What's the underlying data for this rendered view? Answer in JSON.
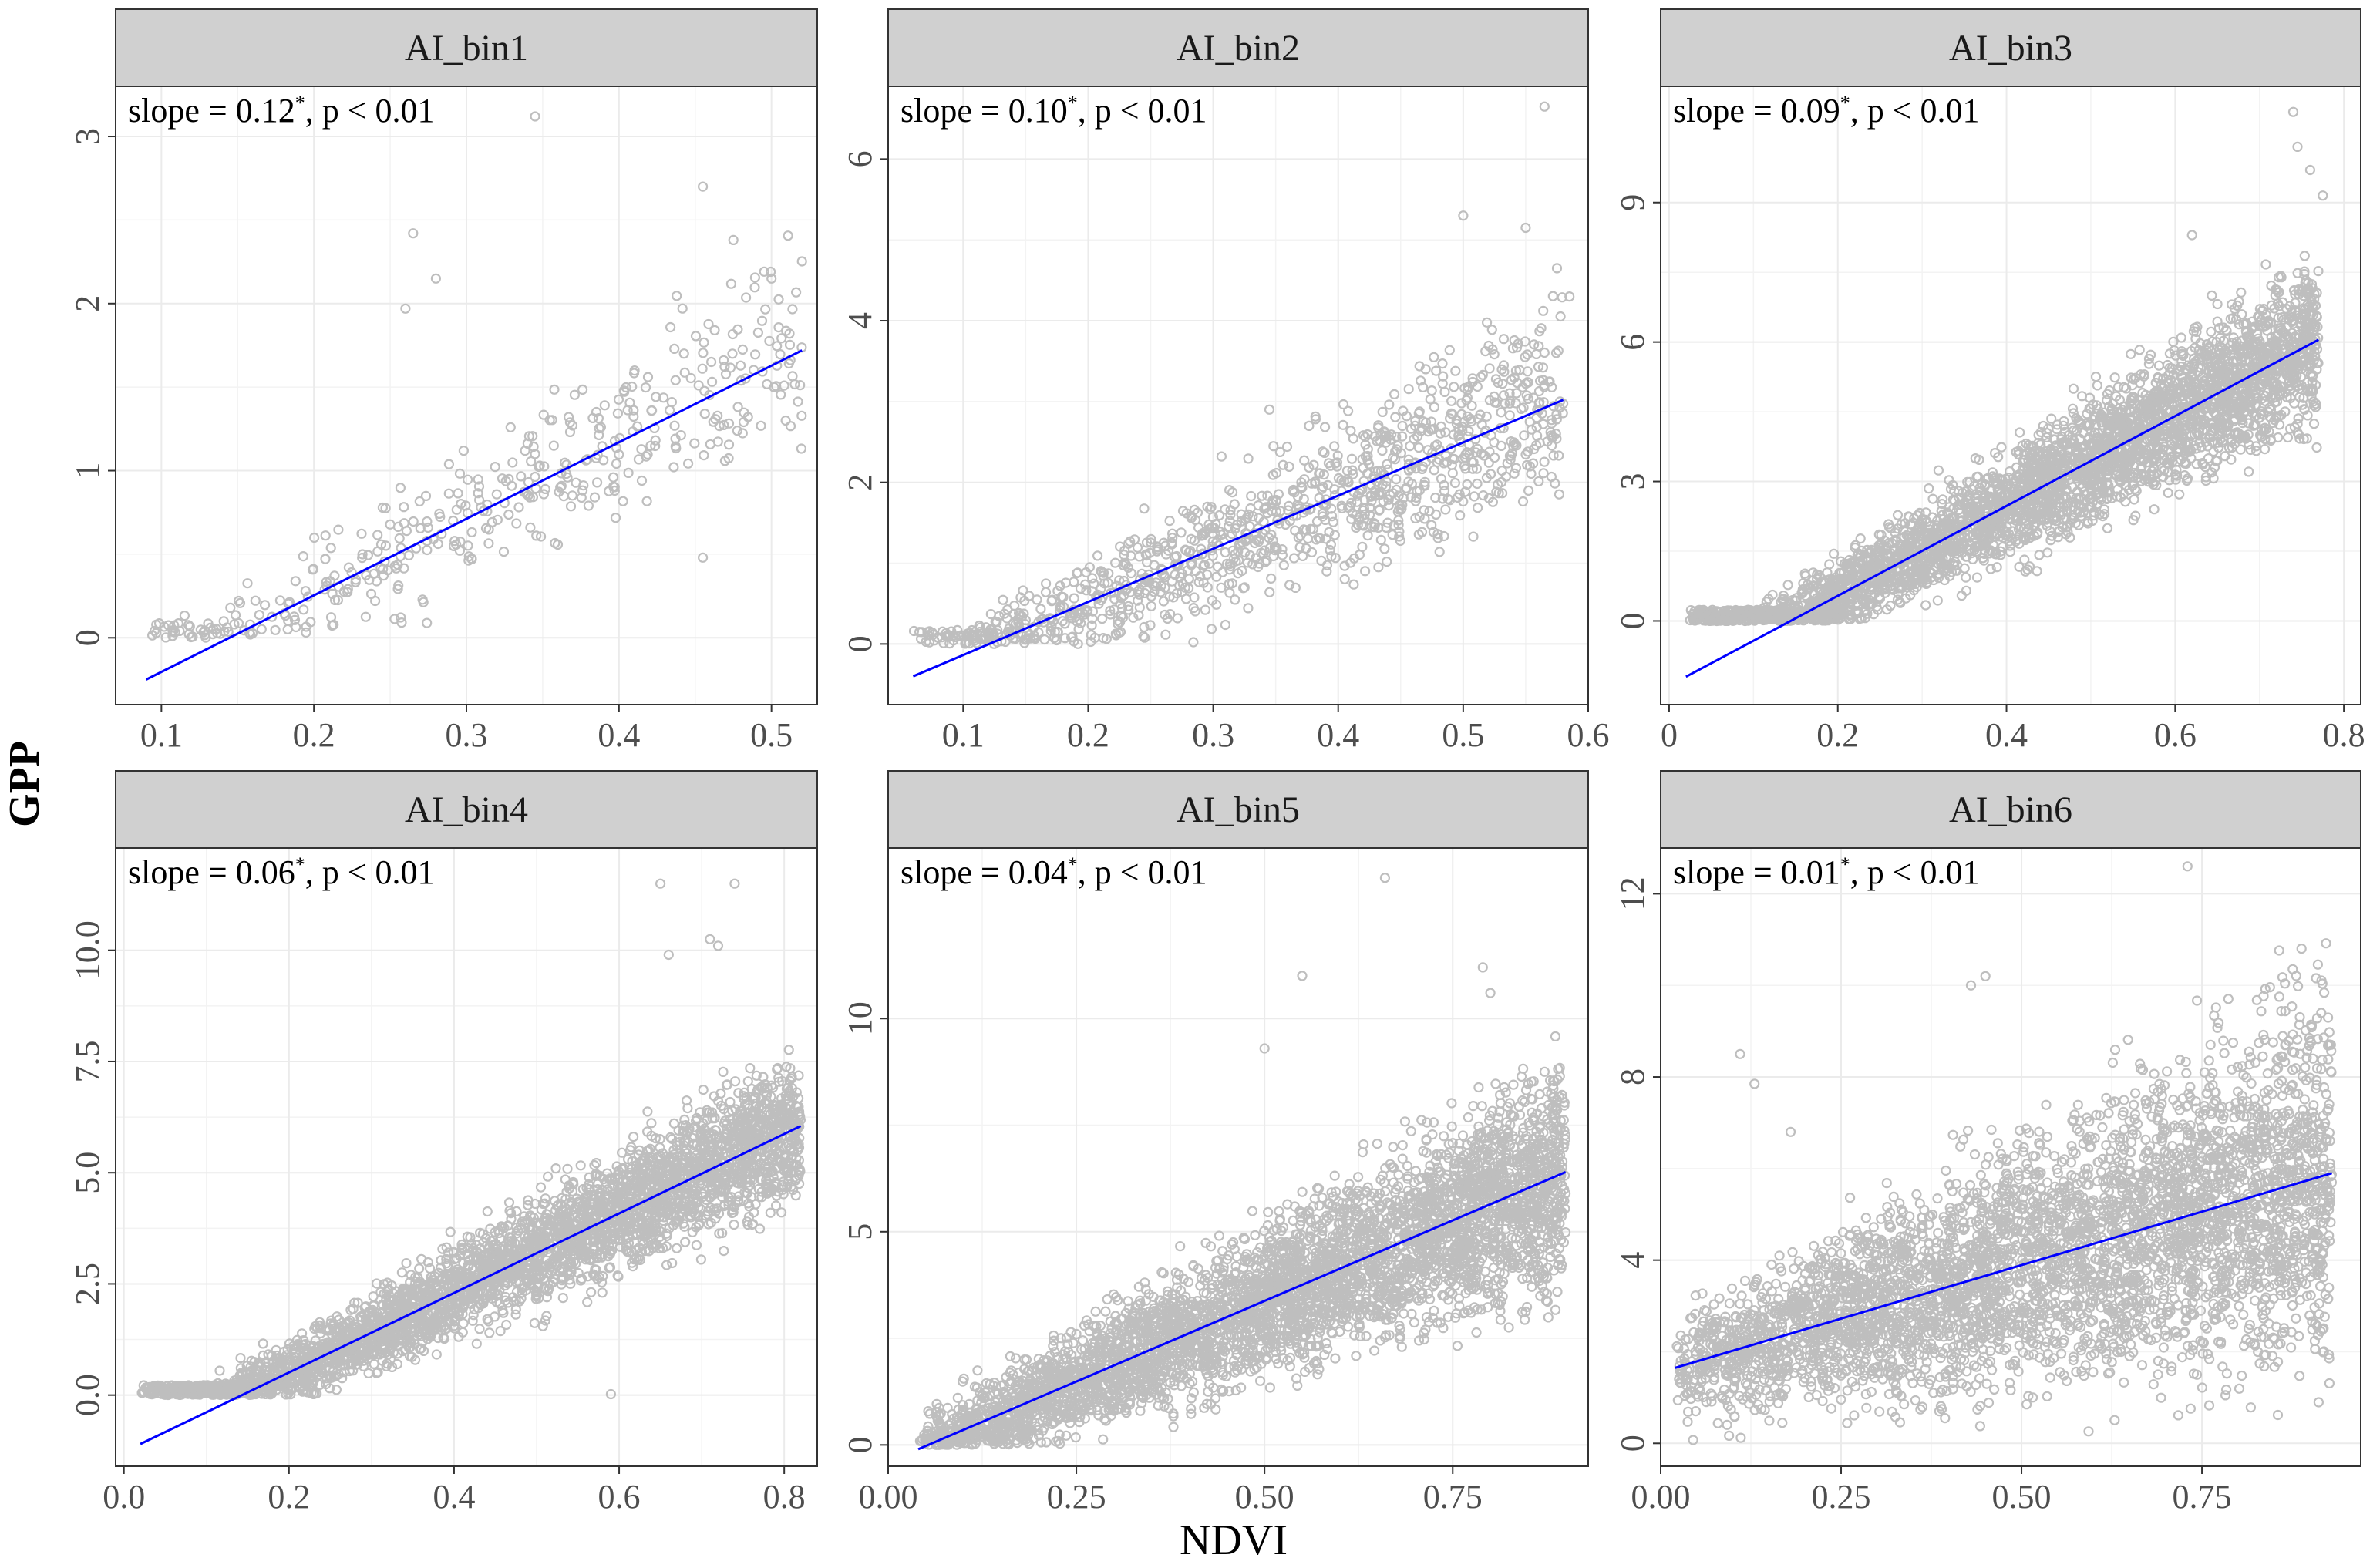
{
  "figure": {
    "x_title": "NDVI",
    "y_title": "GPP"
  },
  "colors": {
    "points": "#bebebe",
    "fit_line": "#0000ff",
    "strip_fill": "#d0d0d0",
    "grid": "#ebebeb",
    "frame": "#333333"
  },
  "chart_data": [
    {
      "type": "scatter",
      "title": "AI_bin1",
      "annotation": {
        "prefix": "slope = 0.12",
        "sup": "*",
        "suffix": ", p < 0.01"
      },
      "xlabel": "NDVI",
      "ylabel": "GPP",
      "xlim": [
        0.07,
        0.53
      ],
      "ylim": [
        -0.4,
        3.3
      ],
      "xticks": [
        0.1,
        0.2,
        0.3,
        0.4,
        0.5
      ],
      "xtick_labels": [
        "0.1",
        "0.2",
        "0.3",
        "0.4",
        "0.5"
      ],
      "yticks": [
        0,
        1,
        2,
        3
      ],
      "ytick_labels": [
        "0",
        "1",
        "2",
        "3"
      ],
      "fit": {
        "x": [
          0.09,
          0.52
        ],
        "y": [
          -0.25,
          1.72
        ]
      },
      "points": {
        "n": 420,
        "x_range": [
          0.09,
          0.52
        ],
        "resid_sd": 0.35,
        "seed": 11,
        "floor": 0,
        "outliers": [
          [
            0.345,
            3.12
          ],
          [
            0.265,
            2.42
          ],
          [
            0.455,
            2.7
          ],
          [
            0.28,
            2.15
          ],
          [
            0.26,
            1.97
          ],
          [
            0.5,
            2.15
          ],
          [
            0.475,
            2.38
          ],
          [
            0.455,
            0.48
          ]
        ]
      }
    },
    {
      "type": "scatter",
      "title": "AI_bin2",
      "annotation": {
        "prefix": "slope = 0.10",
        "sup": "*",
        "suffix": ", p < 0.01"
      },
      "xlabel": "NDVI",
      "ylabel": "GPP",
      "xlim": [
        0.04,
        0.6
      ],
      "ylim": [
        -0.75,
        6.9
      ],
      "xticks": [
        0.1,
        0.2,
        0.3,
        0.4,
        0.5,
        0.6
      ],
      "xtick_labels": [
        "0.1",
        "0.2",
        "0.3",
        "0.4",
        "0.5",
        "0.6"
      ],
      "yticks": [
        0,
        2,
        4,
        6
      ],
      "ytick_labels": [
        "0",
        "2",
        "4",
        "6"
      ],
      "fit": {
        "x": [
          0.06,
          0.58
        ],
        "y": [
          -0.4,
          3.02
        ]
      },
      "points": {
        "n": 1100,
        "x_range": [
          0.06,
          0.58
        ],
        "resid_sd": 0.7,
        "seed": 22,
        "floor": 0,
        "outliers": [
          [
            0.565,
            6.65
          ],
          [
            0.5,
            5.3
          ],
          [
            0.55,
            5.15
          ],
          [
            0.575,
            4.65
          ],
          [
            0.585,
            4.3
          ],
          [
            0.345,
            2.9
          ],
          [
            0.47,
            3.4
          ]
        ]
      }
    },
    {
      "type": "scatter",
      "title": "AI_bin3",
      "annotation": {
        "prefix": "slope = 0.09",
        "sup": "*",
        "suffix": ", p < 0.01"
      },
      "xlabel": "NDVI",
      "ylabel": "GPP",
      "xlim": [
        -0.01,
        0.82
      ],
      "ylim": [
        -1.8,
        11.5
      ],
      "xticks": [
        0,
        0.2,
        0.4,
        0.6,
        0.8
      ],
      "xtick_labels": [
        "0",
        "0.2",
        "0.4",
        "0.6",
        "0.8"
      ],
      "yticks": [
        0,
        3,
        6,
        9
      ],
      "ytick_labels": [
        "0",
        "3",
        "6",
        "9"
      ],
      "fit": {
        "x": [
          0.02,
          0.77
        ],
        "y": [
          -1.2,
          6.05
        ]
      },
      "points": {
        "n": 3600,
        "x_range": [
          0.02,
          0.77
        ],
        "resid_sd": 0.95,
        "seed": 33,
        "floor": 0,
        "outliers": [
          [
            0.74,
            10.95
          ],
          [
            0.745,
            10.2
          ],
          [
            0.76,
            9.7
          ],
          [
            0.775,
            9.15
          ],
          [
            0.62,
            8.3
          ]
        ]
      }
    },
    {
      "type": "scatter",
      "title": "AI_bin4",
      "annotation": {
        "prefix": "slope = 0.06",
        "sup": "*",
        "suffix": ", p < 0.01"
      },
      "xlabel": "NDVI",
      "ylabel": "GPP",
      "xlim": [
        -0.01,
        0.84
      ],
      "ylim": [
        -1.6,
        12.3
      ],
      "xticks": [
        0,
        0.2,
        0.4,
        0.6,
        0.8
      ],
      "xtick_labels": [
        "0.0",
        "0.2",
        "0.4",
        "0.6",
        "0.8"
      ],
      "yticks": [
        0,
        2.5,
        5,
        7.5,
        10
      ],
      "ytick_labels": [
        "0.0",
        "2.5",
        "5.0",
        "7.5",
        "10.0"
      ],
      "fit": {
        "x": [
          0.02,
          0.82
        ],
        "y": [
          -1.1,
          6.05
        ]
      },
      "points": {
        "n": 3600,
        "x_range": [
          0.02,
          0.82
        ],
        "resid_sd": 0.9,
        "seed": 44,
        "floor": 0,
        "outliers": [
          [
            0.65,
            11.5
          ],
          [
            0.74,
            11.5
          ],
          [
            0.71,
            10.25
          ],
          [
            0.72,
            10.1
          ],
          [
            0.66,
            9.9
          ],
          [
            0.59,
            0.02
          ]
        ]
      }
    },
    {
      "type": "scatter",
      "title": "AI_bin5",
      "annotation": {
        "prefix": "slope = 0.04",
        "sup": "*",
        "suffix": ", p < 0.01"
      },
      "xlabel": "NDVI",
      "ylabel": "GPP",
      "xlim": [
        0.0,
        0.93
      ],
      "ylim": [
        -0.5,
        14.0
      ],
      "xticks": [
        0,
        0.25,
        0.5,
        0.75
      ],
      "xtick_labels": [
        "0.00",
        "0.25",
        "0.50",
        "0.75"
      ],
      "yticks": [
        0,
        5,
        10
      ],
      "ytick_labels": [
        "0",
        "5",
        "10"
      ],
      "fit": {
        "x": [
          0.04,
          0.9
        ],
        "y": [
          -0.1,
          6.4
        ]
      },
      "points": {
        "n": 4200,
        "x_range": [
          0.04,
          0.9
        ],
        "resid_sd": 1.4,
        "seed": 55,
        "floor": 0,
        "outliers": [
          [
            0.66,
            13.3
          ],
          [
            0.55,
            11.0
          ],
          [
            0.79,
            11.2
          ],
          [
            0.8,
            10.6
          ],
          [
            0.5,
            9.3
          ]
        ]
      }
    },
    {
      "type": "scatter",
      "title": "AI_bin6",
      "annotation": {
        "prefix": "slope = 0.01",
        "sup": "*",
        "suffix": ", p < 0.01"
      },
      "xlabel": "NDVI",
      "ylabel": "GPP",
      "xlim": [
        0.0,
        0.97
      ],
      "ylim": [
        -0.5,
        13.0
      ],
      "xticks": [
        0,
        0.25,
        0.5,
        0.75
      ],
      "xtick_labels": [
        "0.00",
        "0.25",
        "0.50",
        "0.75"
      ],
      "yticks": [
        0,
        4,
        8,
        12
      ],
      "ytick_labels": [
        "0",
        "4",
        "8",
        "12"
      ],
      "fit": {
        "x": [
          0.02,
          0.93
        ],
        "y": [
          1.65,
          5.9
        ]
      },
      "points": {
        "n": 4200,
        "x_range": [
          0.02,
          0.93
        ],
        "resid_sd": 2.2,
        "seed": 66,
        "floor": 0,
        "outliers": [
          [
            0.73,
            12.6
          ],
          [
            0.11,
            8.5
          ],
          [
            0.13,
            7.85
          ],
          [
            0.18,
            6.8
          ],
          [
            0.43,
            10.0
          ],
          [
            0.45,
            10.2
          ]
        ]
      }
    }
  ]
}
